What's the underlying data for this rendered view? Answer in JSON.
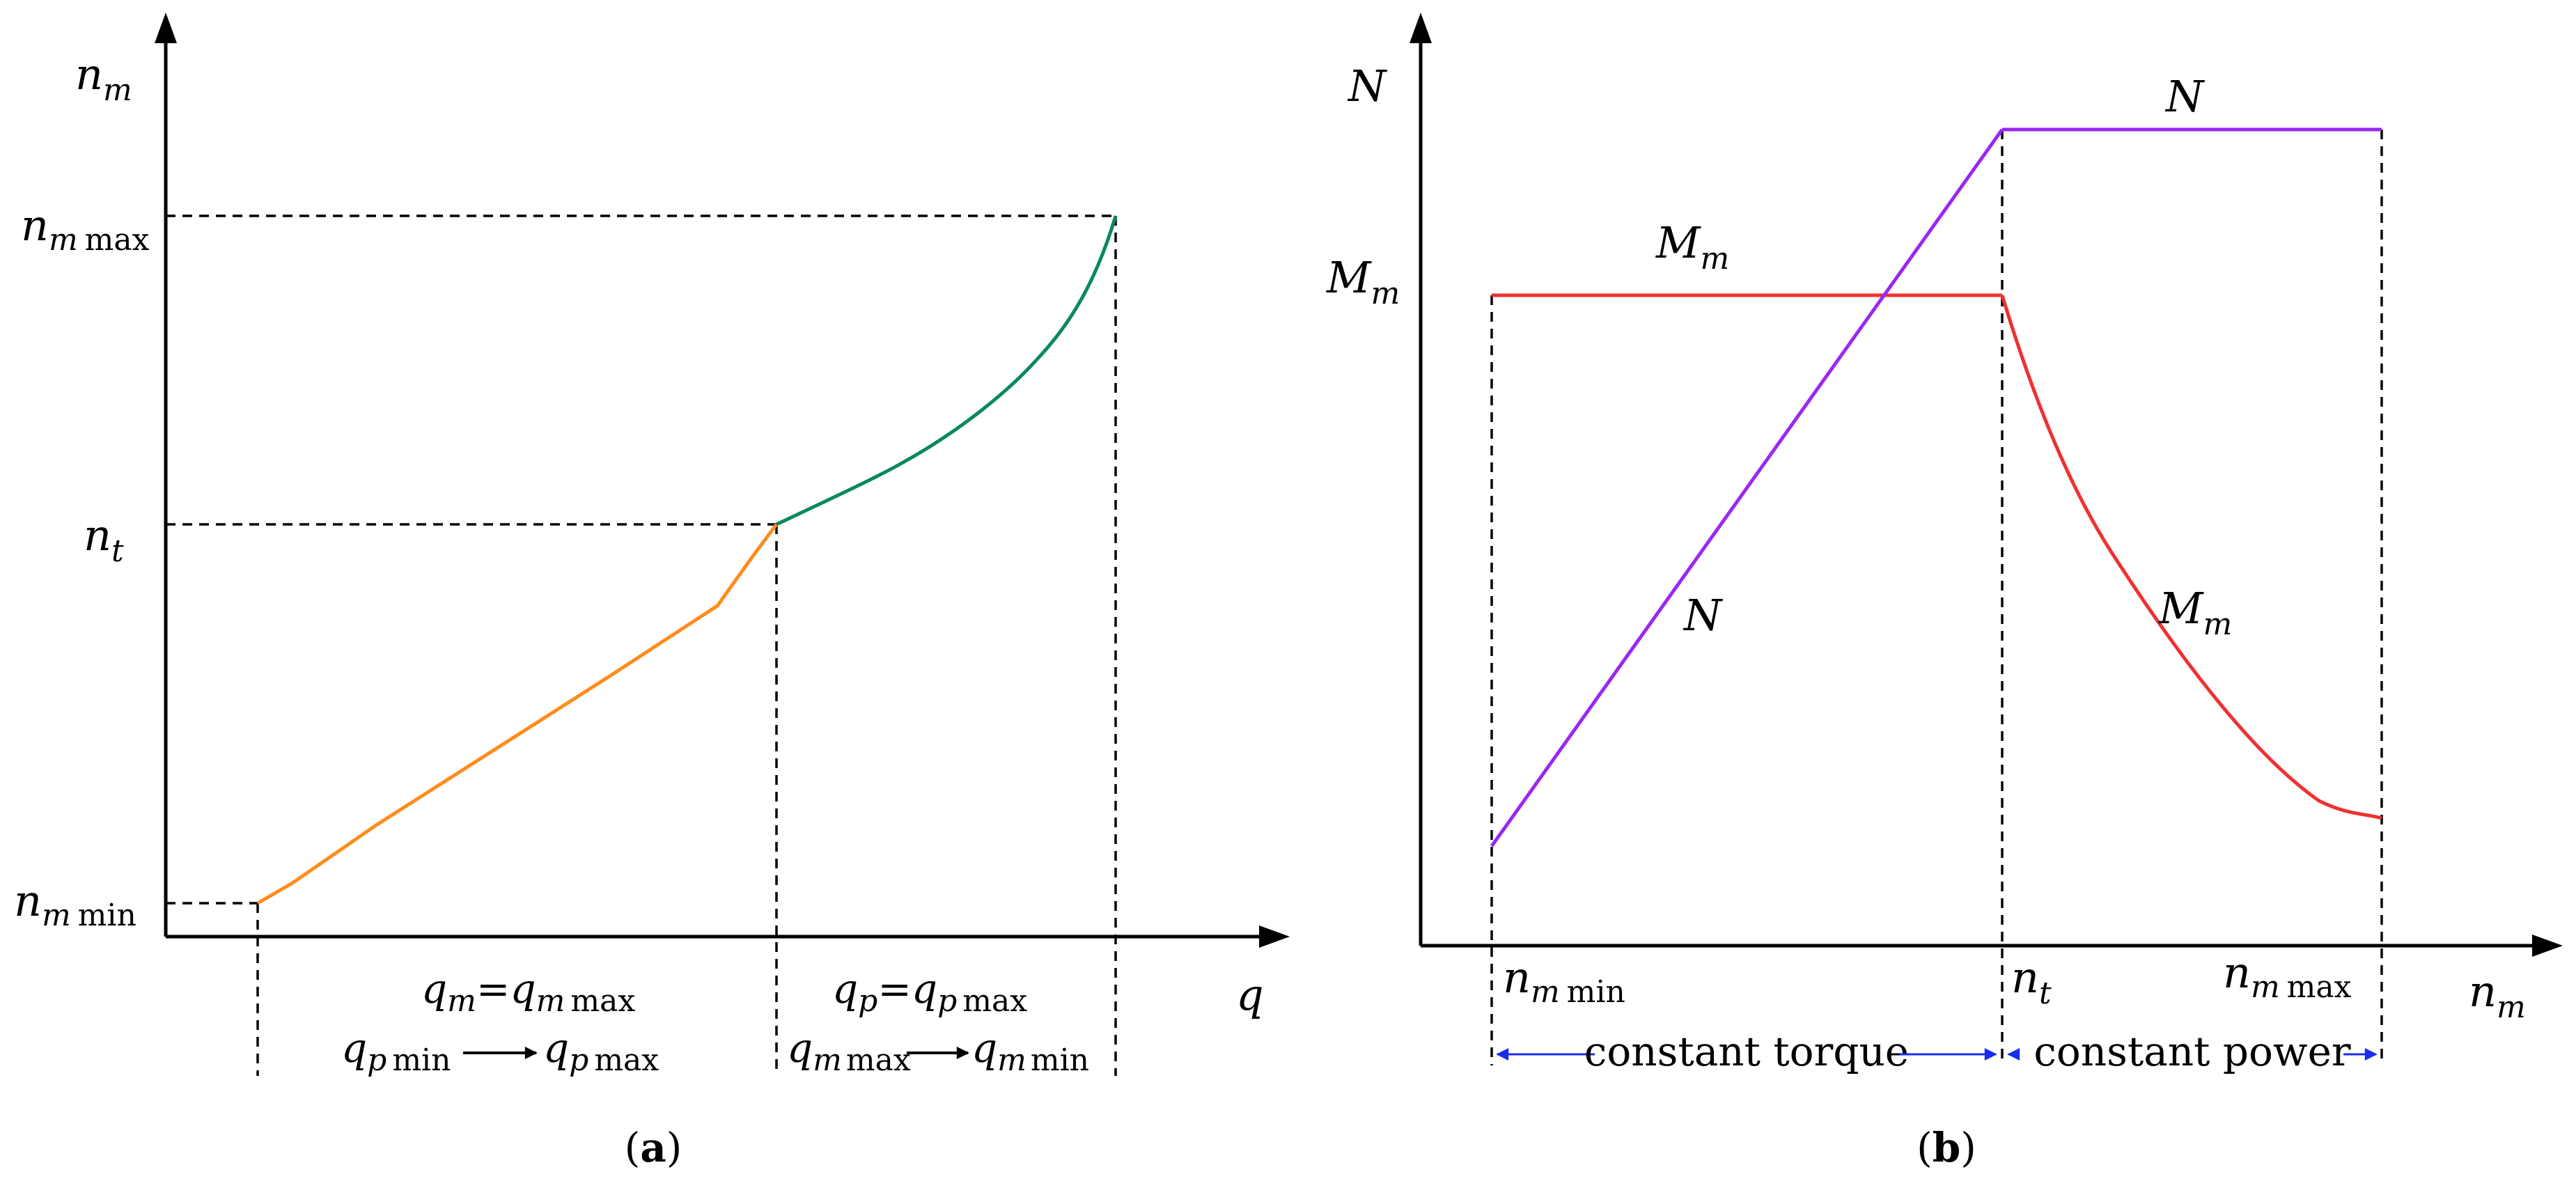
{
  "colors": {
    "orange": "#ff8c1a",
    "green": "#0a8a5a",
    "violet": "#9a28f0",
    "red": "#f03030",
    "blue_arrow": "#1a2cf0",
    "axis": "#000000"
  },
  "panel_a": {
    "caption_open": "(",
    "caption_letter": "a",
    "caption_close": ")",
    "y_axis": {
      "base": "n",
      "sub": "m"
    },
    "x_axis": {
      "base": "q"
    },
    "label_max": {
      "base": "n",
      "sub": "m",
      "tail": "max"
    },
    "label_t": {
      "base": "n",
      "sub": "t"
    },
    "label_min": {
      "base": "n",
      "sub": "m",
      "tail": "min"
    },
    "region1_line1": {
      "a": "q",
      "a_sub": "m",
      "eq": "=",
      "b": "q",
      "b_sub": "m",
      "b_tail": "max"
    },
    "region1_line2": {
      "a": "q",
      "a_sub": "p",
      "a_tail": "min",
      "b": "q",
      "b_sub": "p",
      "b_tail": "max"
    },
    "region2_line1": {
      "a": "q",
      "a_sub": "p",
      "eq": "=",
      "b": "q",
      "b_sub": "p",
      "b_tail": "max"
    },
    "region2_line2": {
      "a": "q",
      "a_sub": "m",
      "a_tail": "max",
      "b": "q",
      "b_sub": "m",
      "b_tail": "min"
    },
    "orange_curve_icon": "orange-curve",
    "green_curve_icon": "green-curve"
  },
  "panel_b": {
    "caption_open": "(",
    "caption_letter": "b",
    "caption_close": ")",
    "y_axis": {
      "base": "N"
    },
    "y_label_M": {
      "base": "M",
      "sub": "m"
    },
    "x_axis": {
      "base": "n",
      "sub": "m"
    },
    "tick_min": {
      "base": "n",
      "sub": "m",
      "tail": "min"
    },
    "tick_t": {
      "base": "n",
      "sub": "t"
    },
    "tick_max": {
      "base": "n",
      "sub": "m",
      "tail": "max"
    },
    "curve_N_top": {
      "base": "N"
    },
    "curve_N_ramp": {
      "base": "N"
    },
    "curve_M_flat": {
      "base": "M",
      "sub": "m"
    },
    "curve_M_decay": {
      "base": "M",
      "sub": "m"
    },
    "region_torque": "constant torque",
    "region_power": "constant power"
  }
}
